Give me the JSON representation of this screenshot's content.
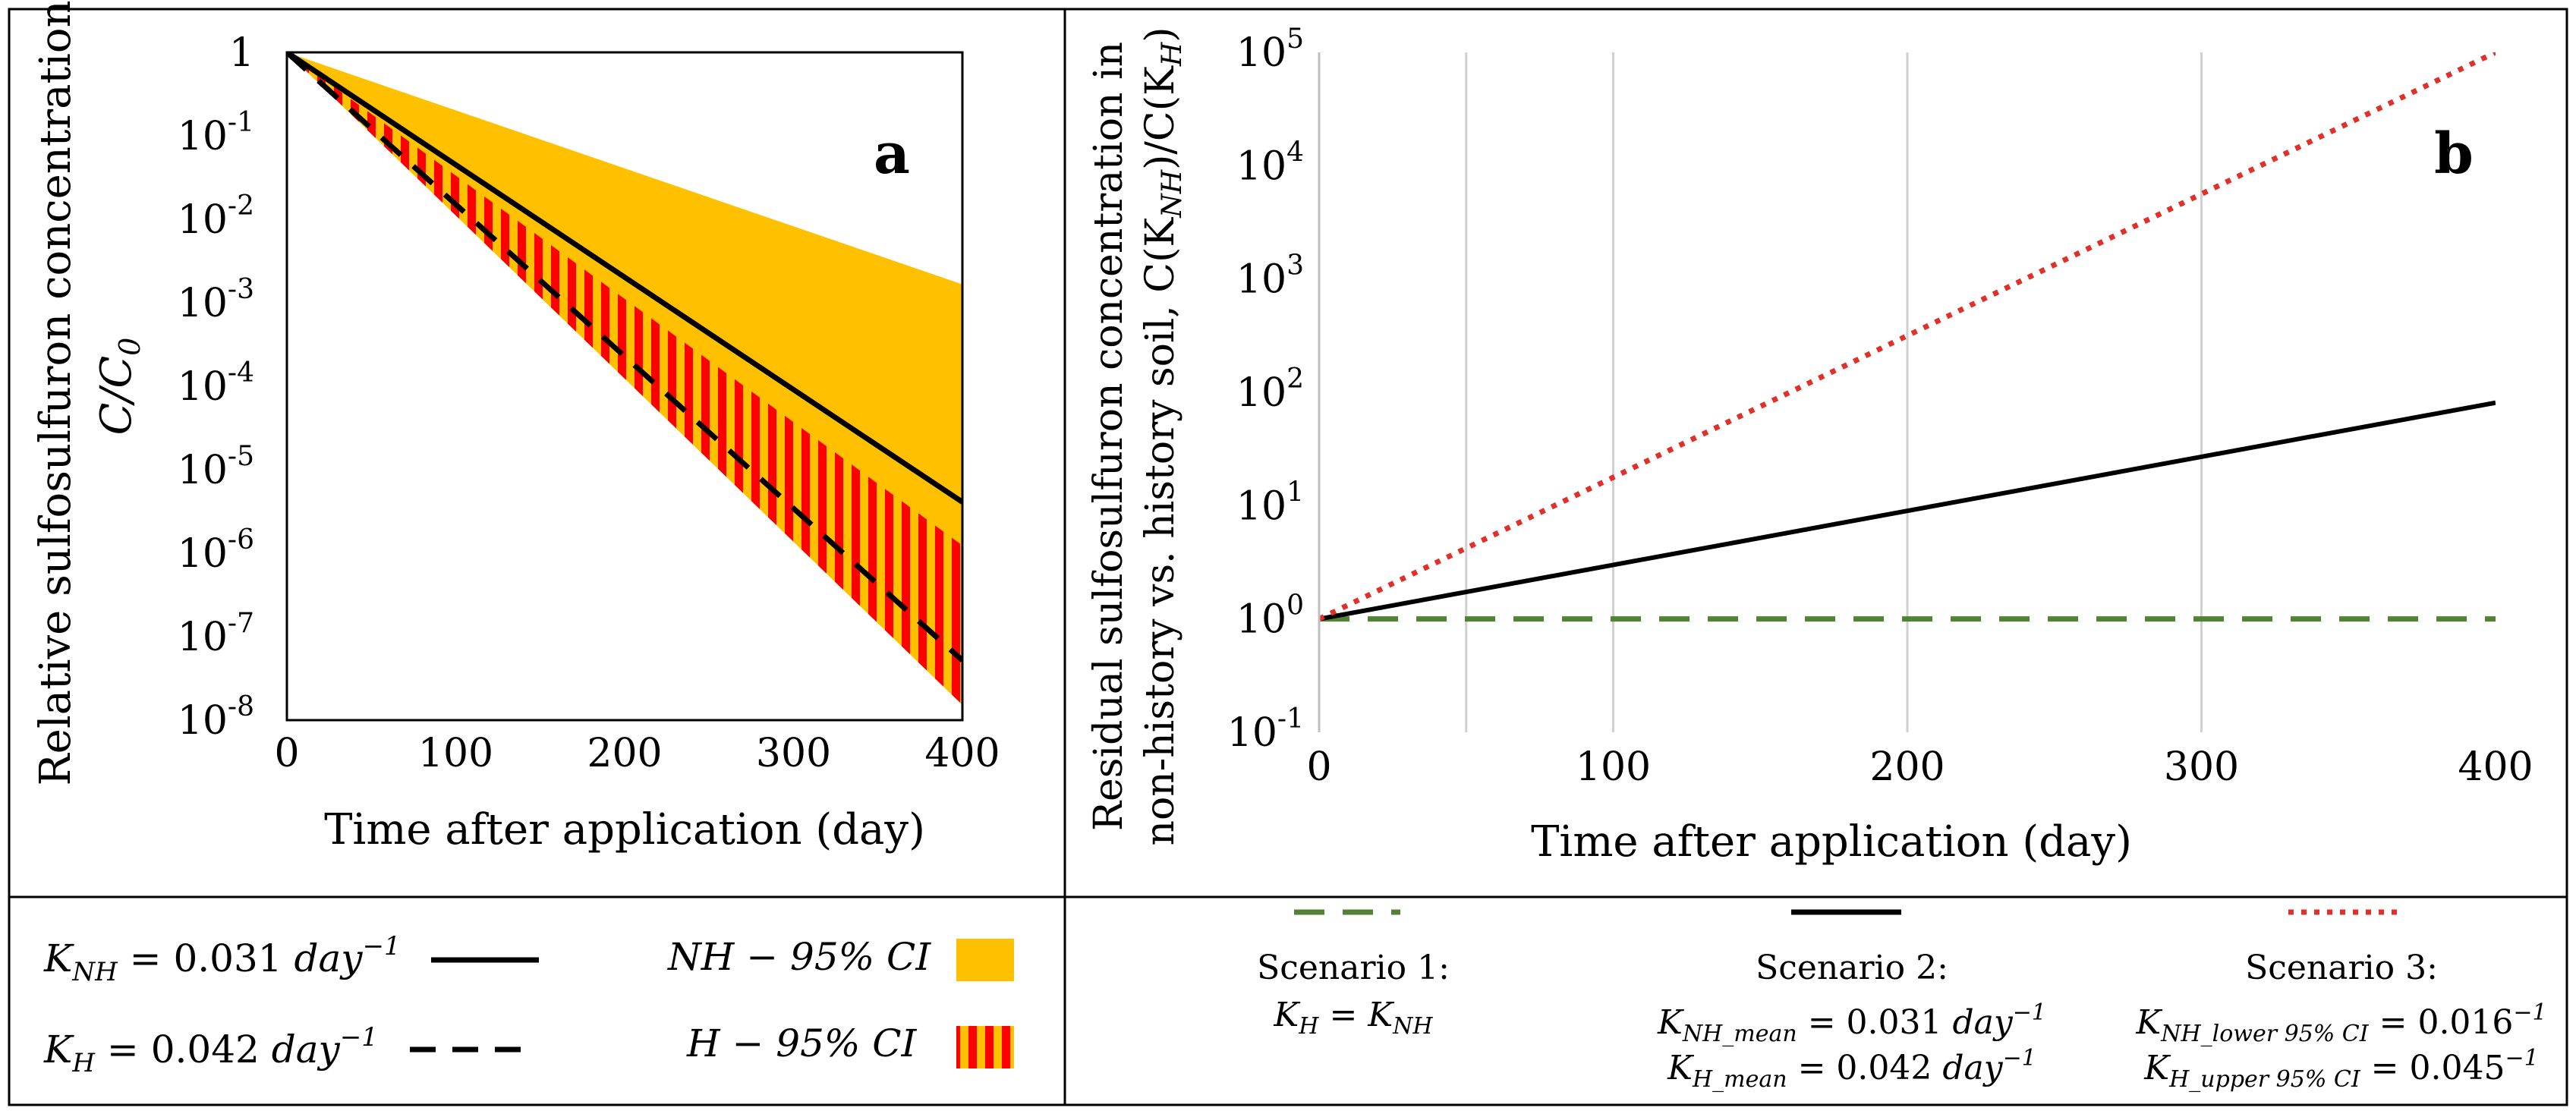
{
  "chart_data": [
    {
      "panel_label": "a",
      "type": "line",
      "title": "",
      "xlabel": "Time after application (day)",
      "ylabel_line1": "Relative sulfosulfuron concentration,",
      "ylabel_line2": "C/C",
      "ylabel_sub": "0",
      "xlim": [
        0,
        400
      ],
      "ylim": [
        1e-08,
        1
      ],
      "y_scale": "log",
      "x_ticks": [
        0,
        100,
        200,
        300,
        400
      ],
      "x_tick_labels": [
        "0",
        "100",
        "200",
        "300",
        "400"
      ],
      "y_tick_labels": [
        {
          "base": "1",
          "exp": ""
        },
        {
          "base": "10",
          "exp": "-1"
        },
        {
          "base": "10",
          "exp": "-2"
        },
        {
          "base": "10",
          "exp": "-3"
        },
        {
          "base": "10",
          "exp": "-4"
        },
        {
          "base": "10",
          "exp": "-5"
        },
        {
          "base": "10",
          "exp": "-6"
        },
        {
          "base": "10",
          "exp": "-7"
        },
        {
          "base": "10",
          "exp": "-8"
        }
      ],
      "bands": [
        {
          "name": "NH − 95% CI",
          "k_lower": 0.016,
          "k_upper": 0.045,
          "color": "#FFC000",
          "pattern": "solid"
        },
        {
          "name": "H − 95% CI",
          "k_lower": 0.034,
          "k_upper": 0.045,
          "color": "#FF0000",
          "pattern": "striped",
          "stripe_color": "#FFC000"
        }
      ],
      "series": [
        {
          "name": "K_NH = 0.031 day^-1",
          "k": 0.031,
          "style": "solid",
          "color": "#000000",
          "x": [
            0,
            400
          ],
          "y": [
            1,
            4.1e-06
          ]
        },
        {
          "name": "K_H = 0.042 day^-1",
          "k": 0.042,
          "style": "dashed",
          "color": "#000000",
          "x": [
            0,
            400
          ],
          "y": [
            1,
            5.2e-08
          ]
        }
      ],
      "legend": {
        "placement": "bottom",
        "knh_prefix": "K",
        "knh_sub": "NH",
        "knh_value": " = 0.031 ",
        "knh_unit": "day",
        "knh_exp": "−1",
        "kh_prefix": "K",
        "kh_sub": "H",
        "kh_value": " = 0.042 ",
        "kh_unit": "day",
        "kh_exp": "−1",
        "nh_ci_label": "NH  − 95% CI",
        "h_ci_label": "H −  95% CI"
      }
    },
    {
      "panel_label": "b",
      "type": "line",
      "title": "",
      "xlabel": "Time after application (day)",
      "ylabel_line1": "Residual sulfosulfuron concentration in",
      "ylabel_line2": "non-history vs. history soil, C(K",
      "ylabel_sub1": "NH",
      "ylabel_mid": ")/C(K",
      "ylabel_sub2": "H",
      "ylabel_end": ")",
      "xlim": [
        0,
        400
      ],
      "ylim": [
        0.1,
        100000
      ],
      "y_scale": "log",
      "grid": "vertical",
      "x_grid": [
        50,
        100,
        200,
        300
      ],
      "x_ticks": [
        0,
        100,
        200,
        300,
        400
      ],
      "x_tick_labels": [
        "0",
        "100",
        "200",
        "300",
        "400"
      ],
      "y_tick_labels": [
        {
          "base": "10",
          "exp": "5"
        },
        {
          "base": "10",
          "exp": "4"
        },
        {
          "base": "10",
          "exp": "3"
        },
        {
          "base": "10",
          "exp": "2"
        },
        {
          "base": "10",
          "exp": "1"
        },
        {
          "base": "10",
          "exp": "0"
        },
        {
          "base": "10",
          "exp": "-1"
        }
      ],
      "series": [
        {
          "name": "Scenario 1",
          "style": "dashed",
          "color": "#548235",
          "x": [
            0,
            400
          ],
          "y": [
            1,
            1
          ]
        },
        {
          "name": "Scenario 2",
          "style": "solid",
          "color": "#000000",
          "x": [
            0,
            400
          ],
          "y": [
            1,
            81
          ]
        },
        {
          "name": "Scenario 3",
          "style": "dotted",
          "color": "#E0302A",
          "x": [
            0,
            400
          ],
          "y": [
            1,
            100000
          ]
        }
      ],
      "legend": {
        "placement": "bottom",
        "s1_title": "Scenario 1:",
        "s1_line": "K_H = K_NH",
        "s2_title": "Scenario 2:",
        "s2_line1_sub": "NH_mean",
        "s2_line1_value": " = 0.031 ",
        "s2_line1_unit": "day",
        "s2_line1_exp": "−1",
        "s2_line2_sub": "H_mean",
        "s2_line2_value": " = 0.042 ",
        "s2_line2_unit": "day",
        "s2_line2_exp": "−1",
        "s3_title": "Scenario 3:",
        "s3_line1_sub": "NH_lower 95% CI",
        "s3_line1_value": "  = 0.016",
        "s3_line1_exp": "−1",
        "s3_line2_sub": "H_upper 95% CI",
        "s3_line2_value": " =  0.045",
        "s3_line2_exp": "−1"
      }
    }
  ]
}
